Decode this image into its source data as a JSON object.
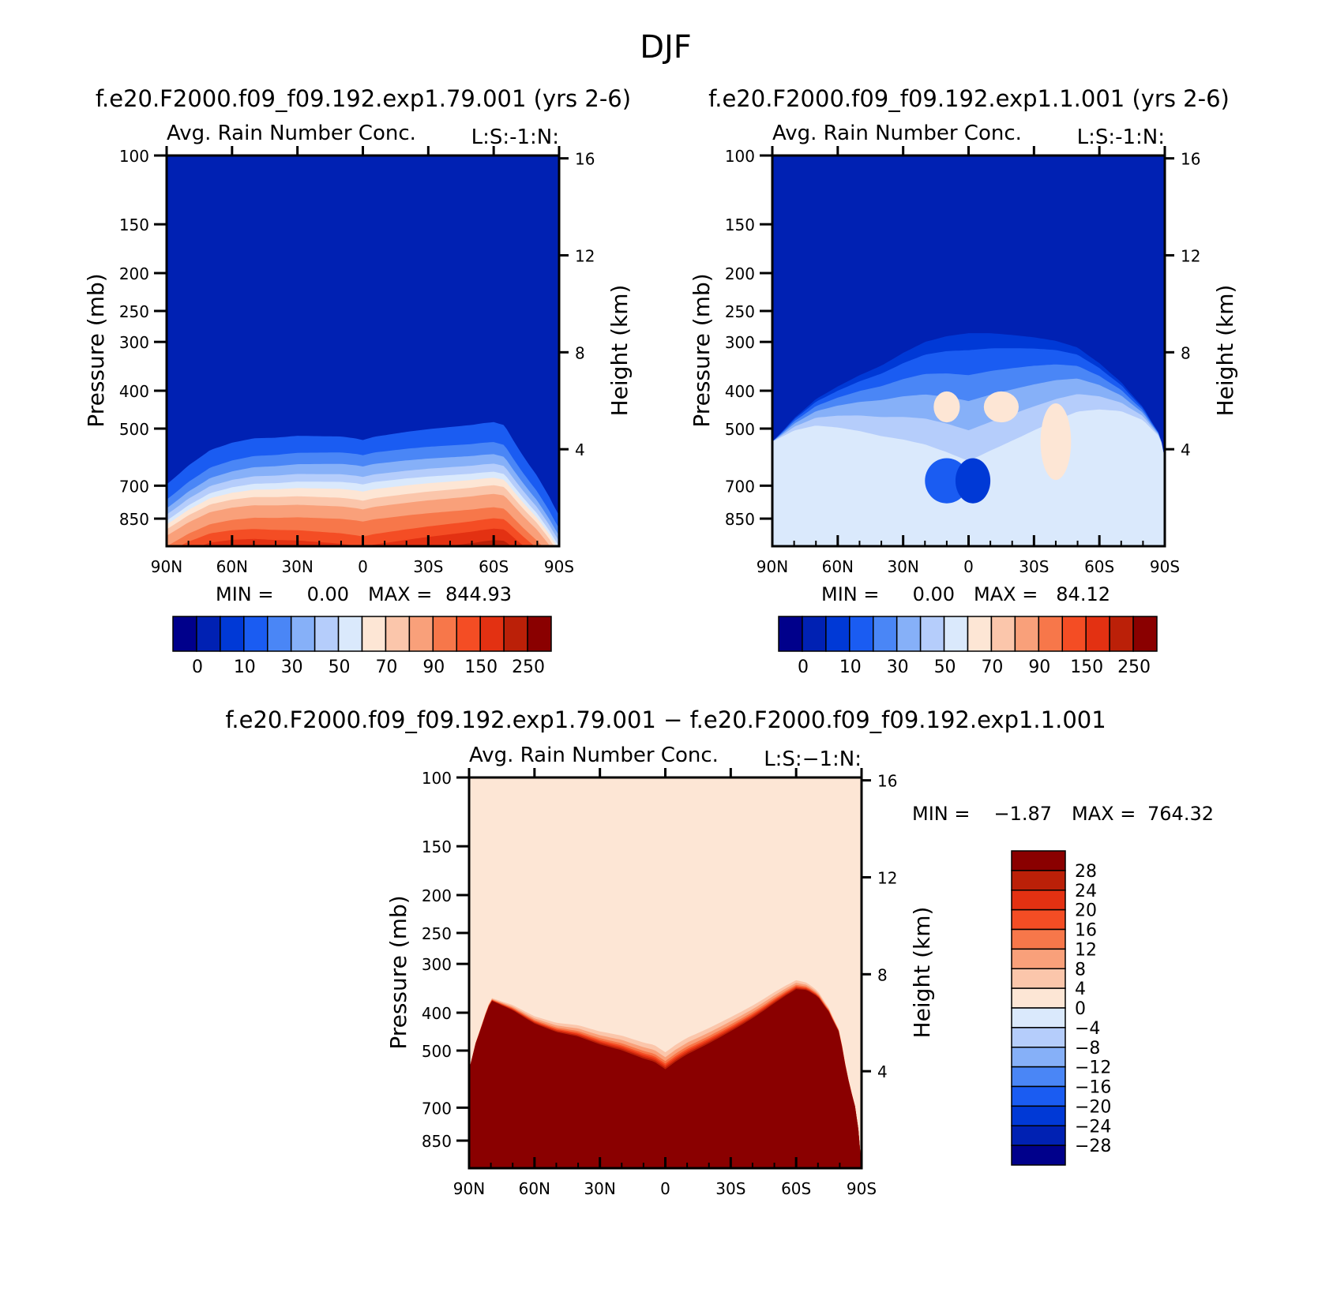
{
  "figure": {
    "title": "DJF"
  },
  "colors": {
    "scale": [
      "#00008b",
      "#0021b3",
      "#0039d6",
      "#1a5cf2",
      "#4a86f6",
      "#86b0f8",
      "#b5cdfb",
      "#dae9fc",
      "#fde6d5",
      "#fbc6ab",
      "#f9a07a",
      "#f7774a",
      "#f44d24",
      "#e33112",
      "#bb2008",
      "#8a0000"
    ],
    "line": "#000000"
  },
  "chart_data": [
    {
      "type": "heatmap",
      "title": "f.e20.F2000.f09_f09.192.exp1.79.001 (yrs 2-6)",
      "subtitle": "Avg. Rain Number Conc.",
      "label_right": "L:S:-1:N:",
      "xlabel": "",
      "ylabel": "Pressure (mb)",
      "y2label": "Height (km)",
      "x_ticks": [
        "90N",
        "60N",
        "30N",
        "0",
        "30S",
        "60S",
        "90S"
      ],
      "y_ticks": [
        100,
        150,
        200,
        250,
        300,
        400,
        500,
        700,
        850
      ],
      "y2_ticks": [
        16,
        12,
        8,
        4
      ],
      "ylim": [
        100,
        1000
      ],
      "stats": {
        "min_label": "MIN =",
        "min": "0.00",
        "max_label": "MAX =",
        "max": "844.93"
      },
      "colorbar": {
        "orientation": "horizontal",
        "labels": [
          "0",
          "10",
          "30",
          "50",
          "70",
          "90",
          "150",
          "250"
        ]
      },
      "field": "boundary",
      "boundaries": [
        [
          3,
          290,
          235
        ],
        [
          4,
          340,
          300
        ],
        [
          5,
          380,
          340
        ],
        [
          6,
          420,
          370
        ],
        [
          7,
          450,
          400
        ],
        [
          8,
          480,
          420
        ],
        [
          9,
          520,
          445
        ],
        [
          10,
          560,
          480
        ],
        [
          11,
          620,
          540
        ],
        [
          12,
          700,
          580
        ],
        [
          13,
          760,
          630
        ],
        [
          14,
          830,
          690
        ],
        [
          15,
          870,
          760
        ]
      ],
      "bnd_x": [
        -90,
        -80,
        -70,
        -60,
        -50,
        -40,
        -30,
        -20,
        -10,
        -3,
        0,
        5,
        10,
        20,
        30,
        40,
        50,
        55,
        60,
        65,
        70,
        75,
        80,
        85,
        88,
        90
      ],
      "bnd_base": [
        460,
        380,
        320,
        290,
        270,
        262,
        250,
        245,
        240,
        242,
        245,
        238,
        236,
        232,
        230,
        230,
        230,
        228,
        228,
        240,
        300,
        360,
        420,
        500,
        560,
        600
      ]
    },
    {
      "type": "heatmap",
      "title": "f.e20.F2000.f09_f09.192.exp1.1.001 (yrs 2-6)",
      "subtitle": "Avg. Rain Number Conc.",
      "label_right": "L:S:-1:N:",
      "xlabel": "",
      "ylabel": "Pressure (mb)",
      "y2label": "Height (km)",
      "x_ticks": [
        "90N",
        "60N",
        "30N",
        "0",
        "30S",
        "60S",
        "90S"
      ],
      "y_ticks": [
        100,
        150,
        200,
        250,
        300,
        400,
        500,
        700,
        850
      ],
      "y2_ticks": [
        16,
        12,
        8,
        4
      ],
      "ylim": [
        100,
        1000
      ],
      "stats": {
        "min_label": "MIN =",
        "min": "0.00",
        "max_label": "MAX =",
        "max": "84.12"
      },
      "colorbar": {
        "orientation": "horizontal",
        "labels": [
          "0",
          "10",
          "30",
          "50",
          "70",
          "90",
          "150",
          "250"
        ]
      },
      "field": "blobs",
      "boundaries": [
        [
          2,
          0,
          0
        ],
        [
          3,
          30,
          0
        ],
        [
          4,
          80,
          0
        ],
        [
          5,
          140,
          0
        ],
        [
          6,
          220,
          0
        ],
        [
          7,
          320,
          0
        ]
      ],
      "bnd_x": [
        -90,
        -80,
        -70,
        -60,
        -50,
        -40,
        -30,
        -20,
        -10,
        0,
        10,
        20,
        30,
        40,
        50,
        60,
        70,
        80,
        88,
        90
      ],
      "bnd_base": [
        540,
        470,
        420,
        390,
        365,
        345,
        320,
        300,
        290,
        285,
        285,
        288,
        292,
        298,
        310,
        340,
        380,
        440,
        520,
        600
      ],
      "blobs": [
        {
          "lat": -10,
          "p": 440,
          "rlat": 6,
          "rp": 40,
          "v": 8
        },
        {
          "lat": 15,
          "p": 440,
          "rlat": 8,
          "rp": 40,
          "v": 8
        },
        {
          "lat": 40,
          "p": 540,
          "rlat": 7,
          "rp": 120,
          "v": 8
        },
        {
          "lat": -10,
          "p": 680,
          "rlat": 10,
          "rp": 90,
          "v": 3
        },
        {
          "lat": 2,
          "p": 680,
          "rlat": 8,
          "rp": 90,
          "v": 2
        }
      ]
    },
    {
      "type": "heatmap",
      "title": "f.e20.F2000.f09_f09.192.exp1.79.001 − f.e20.F2000.f09_f09.192.exp1.1.001",
      "subtitle": "Avg. Rain Number Conc.",
      "label_right": "L:S:−1:N:",
      "xlabel": "",
      "ylabel": "Pressure (mb)",
      "y2label": "Height (km)",
      "x_ticks": [
        "90N",
        "60N",
        "30N",
        "0",
        "30S",
        "60S",
        "90S"
      ],
      "y_ticks": [
        100,
        150,
        200,
        250,
        300,
        400,
        500,
        700,
        850
      ],
      "y2_ticks": [
        16,
        12,
        8,
        4
      ],
      "ylim": [
        100,
        1000
      ],
      "stats": {
        "min_label": "MIN =",
        "min": "−1.87",
        "max_label": "MAX =",
        "max": "764.32"
      },
      "colorbar": {
        "orientation": "vertical",
        "labels": [
          "28",
          "24",
          "20",
          "16",
          "12",
          "8",
          "4",
          "0",
          "−4",
          "−8",
          "−12",
          "−16",
          "−20",
          "−24",
          "−28"
        ]
      },
      "field": "boundary",
      "background_level": 8,
      "boundaries": [
        [
          9,
          235,
          0
        ],
        [
          10,
          250,
          0
        ],
        [
          11,
          262,
          0
        ],
        [
          12,
          270,
          0
        ],
        [
          13,
          276,
          0
        ],
        [
          14,
          282,
          0
        ],
        [
          15,
          288,
          0
        ]
      ],
      "bnd_x": [
        -90,
        -87,
        -83,
        -80,
        -75,
        -70,
        -60,
        -50,
        -40,
        -30,
        -20,
        -10,
        -5,
        0,
        5,
        10,
        20,
        30,
        40,
        50,
        55,
        60,
        65,
        70,
        75,
        80,
        83,
        86,
        88,
        90
      ],
      "bnd_base": [
        560,
        470,
        390,
        340,
        335,
        330,
        330,
        320,
        300,
        290,
        275,
        268,
        262,
        270,
        260,
        255,
        255,
        254,
        253,
        250,
        250,
        252,
        270,
        300,
        350,
        420,
        540,
        650,
        720,
        1000
      ]
    }
  ]
}
